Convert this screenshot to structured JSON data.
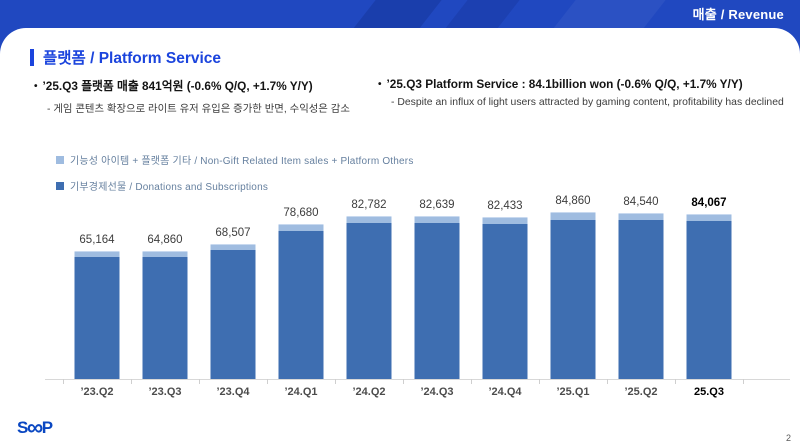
{
  "banner": {
    "label": "매출 / Revenue",
    "bg": "#2048c0"
  },
  "header": {
    "title": "플랫폼 / Platform Service",
    "accent_color": "#1b44dd"
  },
  "bullets": {
    "marker": "•",
    "left": {
      "main": "’25.Q3 플랫폼 매출 841억원 (-0.6% Q/Q, +1.7% Y/Y)",
      "sub": "- 게임 콘텐츠 확장으로 라이트 유저 유입은 증가한 반면, 수익성은 감소"
    },
    "right": {
      "main": "’25.Q3 Platform Service : 84.1billion won (-0.6% Q/Q, +1.7% Y/Y)",
      "sub": "- Despite an influx of light users attracted by gaming content, profitability has declined"
    }
  },
  "legend": [
    {
      "label": "기능성 아이템 + 플랫폼 기타 / Non-Gift Related Item sales + Platform Others",
      "color": "#9fbce0"
    },
    {
      "label": "기부경제선물 / Donations and Subscriptions",
      "color": "#3e6eb1"
    }
  ],
  "chart_data": {
    "type": "bar",
    "stacked": true,
    "title": "",
    "xlabel": "",
    "ylabel": "",
    "categories": [
      "’23.Q2",
      "’23.Q3",
      "’23.Q4",
      "’24.Q1",
      "’24.Q2",
      "’24.Q3",
      "’24.Q4",
      "’25.Q1",
      "’25.Q2",
      "25.Q3"
    ],
    "values": [
      65164,
      64860,
      68507,
      78680,
      82782,
      82639,
      82433,
      84860,
      84540,
      84067
    ],
    "series": [
      {
        "name": "기부경제선물 / Donations and Subscriptions",
        "color": "#3e6eb1",
        "role": "lower-segment",
        "fraction_estimate": 0.955
      },
      {
        "name": "기능성 아이템 + 플랫폼 기타 / Non-Gift Related Item sales + Platform Others",
        "color": "#9fbce0",
        "role": "top-segment",
        "fraction_estimate": 0.045
      }
    ],
    "ylim": [
      0,
      94000
    ],
    "gridlines": false,
    "legend_position": "top-left",
    "data_labels": true,
    "emphasis_index": 9
  },
  "footer": {
    "logo_s": "S",
    "logo_inf": "∞",
    "logo_p": "P",
    "page": "2"
  }
}
